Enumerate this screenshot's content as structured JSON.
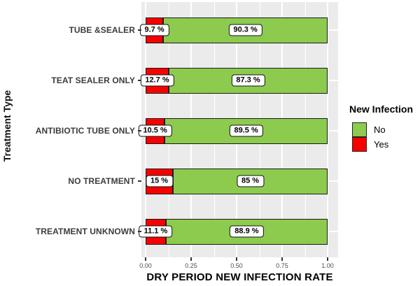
{
  "chart_data": {
    "type": "bar",
    "orientation": "horizontal",
    "stacked": true,
    "title": "",
    "xlabel": "DRY PERIOD NEW INFECTION RATE",
    "ylabel": "Treatment Type",
    "categories": [
      "TUBE &SEALER",
      "TEAT SEALER ONLY",
      "ANTIBIOTIC TUBE ONLY",
      "NO TREATMENT",
      "TREATMENT UNKNOWN"
    ],
    "series": [
      {
        "name": "Yes",
        "color": "#f80000",
        "values": [
          0.097,
          0.127,
          0.105,
          0.15,
          0.111
        ],
        "labels": [
          "9.7 %",
          "12.7 %",
          "10.5 %",
          "15 %",
          "11.1 %"
        ]
      },
      {
        "name": "No",
        "color": "#8ccb4d",
        "values": [
          0.903,
          0.873,
          0.895,
          0.85,
          0.889
        ],
        "labels": [
          "90.3 %",
          "87.3 %",
          "89.5 %",
          "85 %",
          "88.9 %"
        ]
      }
    ],
    "xlim": [
      0,
      1
    ],
    "x_ticks": [
      "0.00",
      "0.25",
      "0.50",
      "0.75",
      "1.00"
    ],
    "x_tick_values": [
      0,
      0.25,
      0.5,
      0.75,
      1.0
    ],
    "grid": {
      "major": true,
      "minor": true,
      "color": "#ffffff"
    },
    "panel_background": "#ebebeb",
    "legend": {
      "title": "New Infection",
      "position": "right",
      "entries": [
        {
          "label": "No",
          "color": "#8ccb4d"
        },
        {
          "label": "Yes",
          "color": "#f80000"
        }
      ]
    }
  }
}
